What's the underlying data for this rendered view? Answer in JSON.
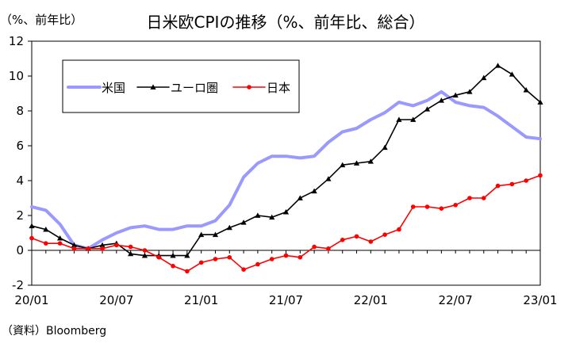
{
  "chart_data": {
    "type": "line",
    "title": "日米欧CPIの推移（%、前年比、総合）",
    "unit_label": "（%、前年比）",
    "source": "（資料）Bloomberg",
    "ylim": [
      -2,
      12
    ],
    "yticks": [
      -2,
      0,
      2,
      4,
      6,
      8,
      10,
      12
    ],
    "xticks": [
      "20/01",
      "20/07",
      "21/01",
      "21/07",
      "22/01",
      "22/07",
      "23/01"
    ],
    "x": [
      "20/01",
      "20/02",
      "20/03",
      "20/04",
      "20/05",
      "20/06",
      "20/07",
      "20/08",
      "20/09",
      "20/10",
      "20/11",
      "20/12",
      "21/01",
      "21/02",
      "21/03",
      "21/04",
      "21/05",
      "21/06",
      "21/07",
      "21/08",
      "21/09",
      "21/10",
      "21/11",
      "21/12",
      "22/01",
      "22/02",
      "22/03",
      "22/04",
      "22/05",
      "22/06",
      "22/07",
      "22/08",
      "22/09",
      "22/10",
      "22/11",
      "22/12",
      "23/01"
    ],
    "legend_position": "top-left",
    "grid": false,
    "series": [
      {
        "name": "米国",
        "color": "#9999ff",
        "marker": "none",
        "values": [
          2.5,
          2.3,
          1.5,
          0.3,
          0.1,
          0.6,
          1.0,
          1.3,
          1.4,
          1.2,
          1.2,
          1.4,
          1.4,
          1.7,
          2.6,
          4.2,
          5.0,
          5.4,
          5.4,
          5.3,
          5.4,
          6.2,
          6.8,
          7.0,
          7.5,
          7.9,
          8.5,
          8.3,
          8.6,
          9.1,
          8.5,
          8.3,
          8.2,
          7.7,
          7.1,
          6.5,
          6.4
        ]
      },
      {
        "name": "ユーロ圏",
        "color": "#000000",
        "marker": "triangle",
        "values": [
          1.4,
          1.2,
          0.7,
          0.3,
          0.1,
          0.3,
          0.4,
          -0.2,
          -0.3,
          -0.3,
          -0.3,
          -0.3,
          0.9,
          0.9,
          1.3,
          1.6,
          2.0,
          1.9,
          2.2,
          3.0,
          3.4,
          4.1,
          4.9,
          5.0,
          5.1,
          5.9,
          7.5,
          7.5,
          8.1,
          8.6,
          8.9,
          9.1,
          9.9,
          10.6,
          10.1,
          9.2,
          8.5
        ]
      },
      {
        "name": "日本",
        "color": "#ff0000",
        "marker": "circle",
        "values": [
          0.7,
          0.4,
          0.4,
          0.1,
          0.1,
          0.1,
          0.3,
          0.2,
          0.0,
          -0.4,
          -0.9,
          -1.2,
          -0.7,
          -0.5,
          -0.4,
          -1.1,
          -0.8,
          -0.5,
          -0.3,
          -0.4,
          0.2,
          0.1,
          0.6,
          0.8,
          0.5,
          0.9,
          1.2,
          2.5,
          2.5,
          2.4,
          2.6,
          3.0,
          3.0,
          3.7,
          3.8,
          4.0,
          4.3
        ]
      }
    ]
  }
}
